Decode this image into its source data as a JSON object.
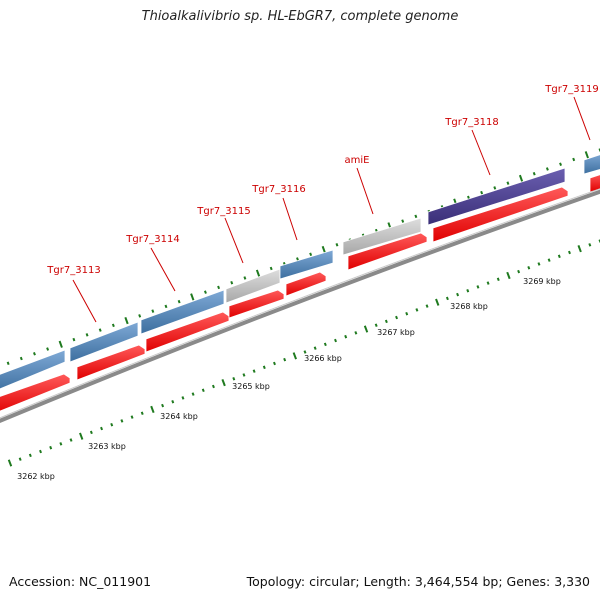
{
  "title": "Thioalkalivibrio sp. HL-EbGR7, complete genome",
  "footer": {
    "accession": "Accession: NC_011901",
    "summary": "Topology: circular; Length: 3,464,554 bp; Genes: 3,330"
  },
  "colors": {
    "cds_forward_blue": "#4a7fb5",
    "cds_gray": "#b5b5b5",
    "cds_purple": "#4a3f8c",
    "gene_red": "#ff1a1a",
    "backbone": "#8a8a8a",
    "tick_green": "#1f7a1f",
    "label_red": "#cc0000"
  },
  "gene_labels": [
    {
      "id": "g1",
      "text": "Tgr7_3113"
    },
    {
      "id": "g2",
      "text": "Tgr7_3114"
    },
    {
      "id": "g3",
      "text": "Tgr7_3115"
    },
    {
      "id": "g4",
      "text": "Tgr7_3116"
    },
    {
      "id": "g5",
      "text": "amiE"
    },
    {
      "id": "g6",
      "text": "Tgr7_3118"
    },
    {
      "id": "g7",
      "text": "Tgr7_3119"
    }
  ],
  "scale_labels": [
    "3262 kbp",
    "3263 kbp",
    "3264 kbp",
    "3265 kbp",
    "3266 kbp",
    "3267 kbp",
    "3268 kbp",
    "3269 kbp"
  ]
}
